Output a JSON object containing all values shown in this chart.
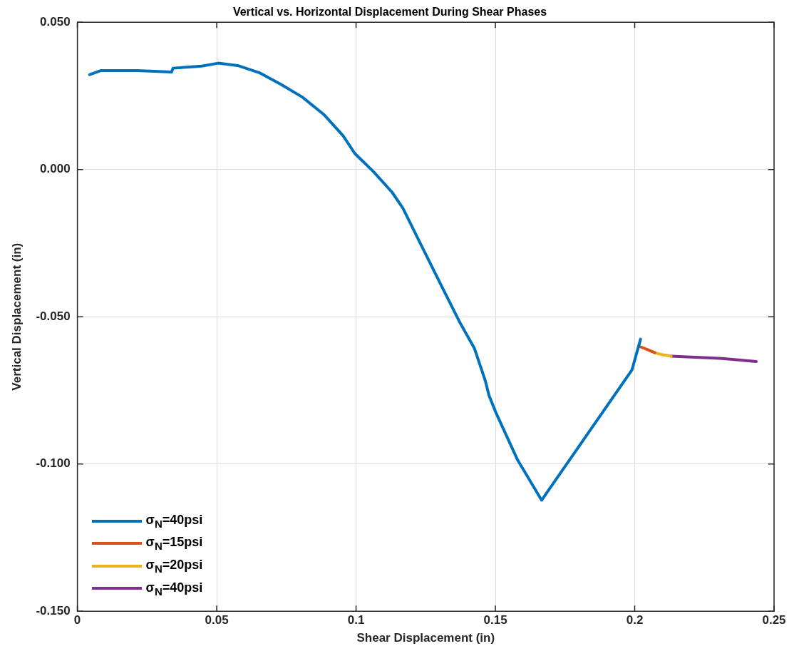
{
  "chart_data": {
    "type": "line",
    "title": "Vertical vs. Horizontal Displacement During Shear Phases",
    "xlabel": "Shear Displacement (in)",
    "ylabel": "Vertical Displacement (in)",
    "xlim": [
      0,
      0.25
    ],
    "xticks": [
      0,
      0.05,
      0.1,
      0.15,
      0.2,
      0.25
    ],
    "ylim": [
      -0.15,
      0.05
    ],
    "yticks": [
      {
        "value": -0.15,
        "label": "-0.150"
      },
      {
        "value": -0.1,
        "label": "-0.100"
      },
      {
        "value": -0.05,
        "label": "-0.050"
      },
      {
        "value": 0,
        "label": "0.000"
      },
      {
        "value": 0.05,
        "label": "0.050"
      }
    ],
    "grid": true,
    "legend": "bottom left",
    "line_style": "solid",
    "marker": "none",
    "series": [
      {
        "name": "σ$_{N}$=40psi",
        "color": "#0072bd",
        "x": [
          0.0044,
          0.0085,
          0.0214,
          0.0338,
          0.0343,
          0.0446,
          0.0505,
          0.0575,
          0.0652,
          0.0729,
          0.0807,
          0.0884,
          0.0954,
          0.0995,
          0.1064,
          0.1129,
          0.1168,
          0.1245,
          0.1309,
          0.1374,
          0.1425,
          0.1464,
          0.1477,
          0.1503,
          0.158,
          0.1666,
          0.199,
          0.2021
        ],
        "values": [
          0.0322,
          0.0336,
          0.0336,
          0.0331,
          0.0344,
          0.0351,
          0.0361,
          0.0353,
          0.0329,
          0.029,
          0.0246,
          0.0187,
          0.0114,
          0.0055,
          -0.0009,
          -0.0077,
          -0.0131,
          -0.0278,
          -0.04,
          -0.0522,
          -0.0608,
          -0.0718,
          -0.0767,
          -0.0828,
          -0.0987,
          -0.1123,
          -0.0681,
          -0.0576
        ]
      },
      {
        "name": "σ$_{N}$=15psi",
        "color": "#d95319",
        "x": [
          0.2015,
          0.2045,
          0.2072
        ],
        "values": [
          -0.06,
          -0.0611,
          -0.0622
        ]
      },
      {
        "name": "σ$_{N}$=20psi",
        "color": "#edb120",
        "x": [
          0.2072,
          0.21,
          0.2131
        ],
        "values": [
          -0.0622,
          -0.0629,
          -0.0634
        ]
      },
      {
        "name": "σ$_{N}$=40psi",
        "color": "#7e2f8e",
        "x": [
          0.2131,
          0.2245,
          0.2314,
          0.2436
        ],
        "values": [
          -0.0634,
          -0.0639,
          -0.0642,
          -0.0652
        ]
      }
    ]
  }
}
